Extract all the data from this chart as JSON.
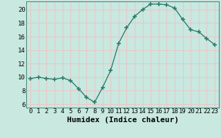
{
  "x": [
    0,
    1,
    2,
    3,
    4,
    5,
    6,
    7,
    8,
    9,
    10,
    11,
    12,
    13,
    14,
    15,
    16,
    17,
    18,
    19,
    20,
    21,
    22,
    23
  ],
  "y": [
    9.8,
    10.0,
    9.8,
    9.7,
    9.9,
    9.5,
    8.3,
    7.0,
    6.3,
    8.5,
    11.0,
    15.0,
    17.3,
    19.0,
    20.0,
    20.8,
    20.8,
    20.7,
    20.2,
    18.5,
    17.0,
    16.7,
    15.7,
    14.8
  ],
  "xlabel": "Humidex (Indice chaleur)",
  "xlim": [
    -0.5,
    23.5
  ],
  "ylim": [
    5.5,
    21.2
  ],
  "yticks": [
    6,
    8,
    10,
    12,
    14,
    16,
    18,
    20
  ],
  "xticks": [
    0,
    1,
    2,
    3,
    4,
    5,
    6,
    7,
    8,
    9,
    10,
    11,
    12,
    13,
    14,
    15,
    16,
    17,
    18,
    19,
    20,
    21,
    22,
    23
  ],
  "line_color": "#2e7d6e",
  "marker_color": "#2e7d6e",
  "bg_color": "#c8e8e0",
  "grid_color": "#e8c8c8",
  "tick_label_fontsize": 6.5,
  "xlabel_fontsize": 8
}
